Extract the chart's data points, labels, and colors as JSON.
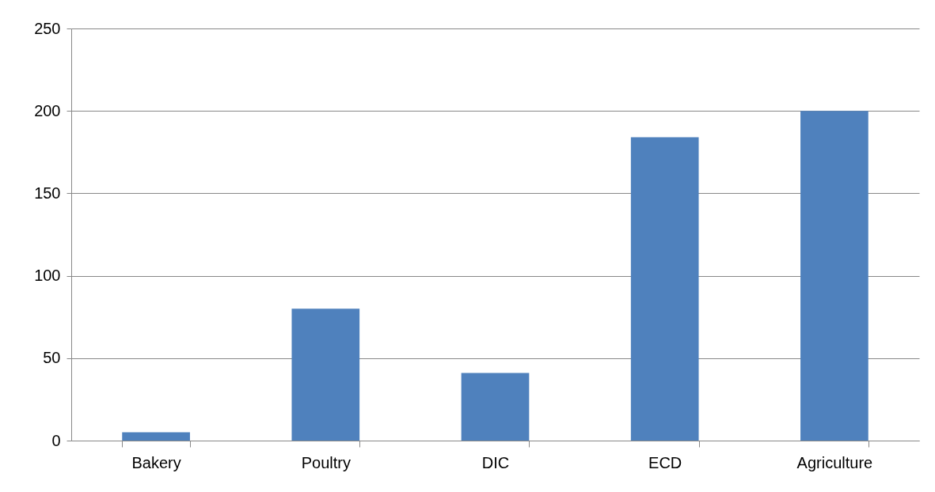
{
  "chart_data": {
    "type": "bar",
    "categories": [
      "Bakery",
      "Poultry",
      "DIC",
      "ECD",
      "Agriculture"
    ],
    "values": [
      5,
      80,
      41,
      184,
      200
    ],
    "color": "#4f81bd",
    "ylim": [
      0,
      250
    ],
    "yticks": [
      0,
      50,
      100,
      150,
      200,
      250
    ],
    "grid": "y"
  }
}
